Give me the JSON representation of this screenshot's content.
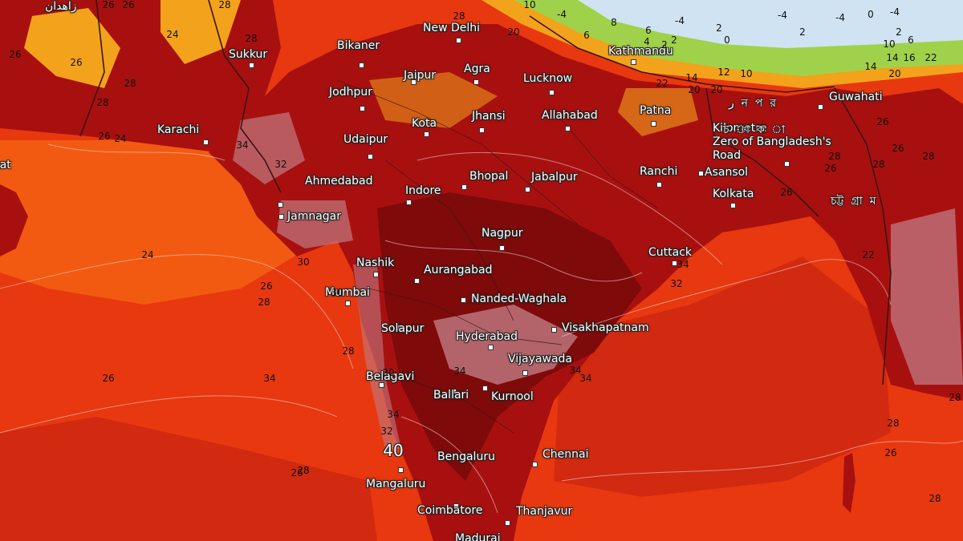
{
  "map": {
    "colors": {
      "sea": "#e8380f",
      "sea_warm": "#f25a12",
      "sea_hot": "#d12a10",
      "land_hot": "#a81010",
      "land_hotter": "#7e0a0a",
      "land_hottest": "#c07a82",
      "hills_mild": "#f3a21c",
      "hills_cool": "#9fd24a",
      "snow": "#cfe3f2",
      "border": "#3a1414",
      "contour": "#f3d6d6"
    },
    "cities": [
      {
        "name": "New Delhi"
      },
      {
        "name": "Bikaner"
      },
      {
        "name": "Sukkur"
      },
      {
        "name": "Jaipur"
      },
      {
        "name": "Agra"
      },
      {
        "name": "Lucknow"
      },
      {
        "name": "Jodhpur"
      },
      {
        "name": "Kathmandu"
      },
      {
        "name": "Karachi"
      },
      {
        "name": "Kota"
      },
      {
        "name": "Jhansi"
      },
      {
        "name": "Allahabad"
      },
      {
        "name": "Patna"
      },
      {
        "name": "Guwahati"
      },
      {
        "name": "Udaipur"
      },
      {
        "name": "Kilometre\nZero of Bangladesh's\nRoad"
      },
      {
        "name": "Ahmedabad"
      },
      {
        "name": "Bhopal"
      },
      {
        "name": "Jabalpur"
      },
      {
        "name": "Ranchi"
      },
      {
        "name": "Asansol"
      },
      {
        "name": "Indore"
      },
      {
        "name": "Kolkata"
      },
      {
        "name": "Jamnagar"
      },
      {
        "name": "Nagpur"
      },
      {
        "name": "Cuttack"
      },
      {
        "name": "Nashik"
      },
      {
        "name": "Aurangabad"
      },
      {
        "name": "Mumbai"
      },
      {
        "name": "Nanded-Waghala"
      },
      {
        "name": "Visakhapatnam"
      },
      {
        "name": "Solapur"
      },
      {
        "name": "Hyderabad"
      },
      {
        "name": "Vijayawada"
      },
      {
        "name": "Belagavi"
      },
      {
        "name": "Ballari"
      },
      {
        "name": "Kurnool"
      },
      {
        "name": "Bengaluru"
      },
      {
        "name": "Chennai"
      },
      {
        "name": "Mangaluru"
      },
      {
        "name": "Coimbatore"
      },
      {
        "name": "Thanjavur"
      },
      {
        "name": "Madurai"
      },
      {
        "name": "cat"
      },
      {
        "name": "زاهدان"
      },
      {
        "name": "ر  ন  প  র"
      },
      {
        "name": "চ  া  ক  া"
      },
      {
        "name": "চট্ট  গ্রা  ম"
      }
    ],
    "temperature_labels": [
      {
        "value": "26"
      },
      {
        "value": "26"
      },
      {
        "value": "24"
      },
      {
        "value": "26"
      },
      {
        "value": "26"
      },
      {
        "value": "28"
      },
      {
        "value": "28"
      },
      {
        "value": "26"
      },
      {
        "value": "28"
      },
      {
        "value": "28"
      },
      {
        "value": "24"
      },
      {
        "value": "34"
      },
      {
        "value": "32"
      },
      {
        "value": "24"
      },
      {
        "value": "26"
      },
      {
        "value": "28"
      },
      {
        "value": "26"
      },
      {
        "value": "30"
      },
      {
        "value": "34"
      },
      {
        "value": "30"
      },
      {
        "value": "28"
      },
      {
        "value": "30"
      },
      {
        "value": "34"
      },
      {
        "value": "32"
      },
      {
        "value": "34"
      },
      {
        "value": "34"
      },
      {
        "value": "32"
      },
      {
        "value": "34"
      },
      {
        "value": "34"
      },
      {
        "value": "26"
      },
      {
        "value": "28"
      },
      {
        "value": "28"
      },
      {
        "value": "26"
      },
      {
        "value": "28"
      },
      {
        "value": "28"
      },
      {
        "value": "40"
      },
      {
        "value": "28"
      },
      {
        "value": "20"
      },
      {
        "value": "10"
      },
      {
        "value": "-4"
      },
      {
        "value": "8"
      },
      {
        "value": "6"
      },
      {
        "value": "2"
      },
      {
        "value": "6"
      },
      {
        "value": "4"
      },
      {
        "value": "2"
      },
      {
        "value": "-4"
      },
      {
        "value": "2"
      },
      {
        "value": "0"
      },
      {
        "value": "-4"
      },
      {
        "value": "2"
      },
      {
        "value": "-4"
      },
      {
        "value": "0"
      },
      {
        "value": "-4"
      },
      {
        "value": "2"
      },
      {
        "value": "6"
      },
      {
        "value": "10"
      },
      {
        "value": "14"
      },
      {
        "value": "16"
      },
      {
        "value": "22"
      },
      {
        "value": "14"
      },
      {
        "value": "20"
      },
      {
        "value": "12"
      },
      {
        "value": "10"
      },
      {
        "value": "22"
      },
      {
        "value": "20"
      },
      {
        "value": "14"
      },
      {
        "value": "20"
      },
      {
        "value": "28"
      },
      {
        "value": "26"
      },
      {
        "value": "26"
      },
      {
        "value": "28"
      },
      {
        "value": "22"
      },
      {
        "value": "26"
      },
      {
        "value": "26"
      },
      {
        "value": "28"
      }
    ]
  }
}
